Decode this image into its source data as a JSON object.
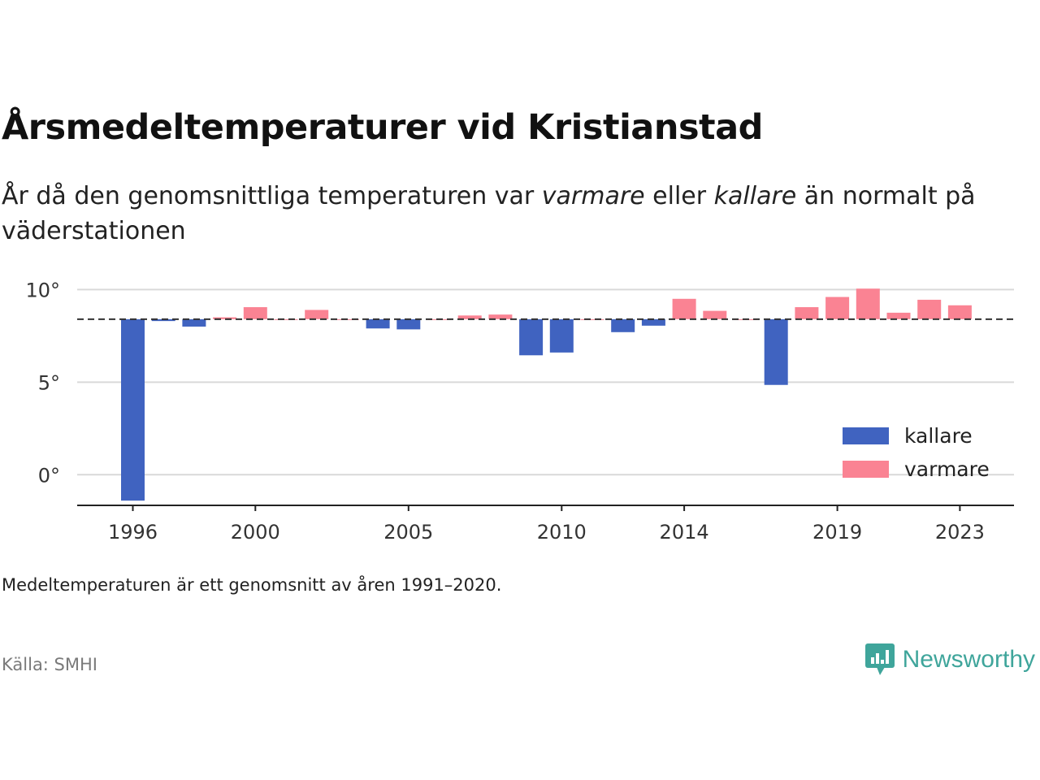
{
  "header": {
    "title": "Årsmedeltemperaturer vid Kristianstad",
    "subtitle_parts": [
      "År då den genomsnittliga temperaturen var ",
      "varmare",
      " eller ",
      "kallare",
      " än normalt på väderstationen"
    ]
  },
  "footer": {
    "note": "Medeltemperaturen är ett genomsnitt av åren 1991–2020.",
    "source": "Källa: SMHI",
    "brand": "Newsworthy",
    "brand_icon": "chart-bubble-logo-icon",
    "brand_color": "#3fa59b"
  },
  "chart_data": {
    "type": "bar",
    "baseline": 8.4,
    "ylim": [
      -1.7,
      10.5
    ],
    "yticks": [
      0,
      5,
      10
    ],
    "ytick_labels": [
      "0°",
      "5°",
      "10°"
    ],
    "xticks": [
      1996,
      2000,
      2005,
      2010,
      2014,
      2019,
      2023
    ],
    "grid": true,
    "legend_position": "bottom-right",
    "colors": {
      "kallare": "#4063c0",
      "varmare": "#fa8393"
    },
    "legend": [
      {
        "key": "kallare",
        "label": "kallare"
      },
      {
        "key": "varmare",
        "label": "varmare"
      }
    ],
    "years": [
      1996,
      1997,
      1998,
      1999,
      2000,
      2001,
      2002,
      2003,
      2004,
      2005,
      2006,
      2007,
      2008,
      2009,
      2010,
      2011,
      2012,
      2013,
      2014,
      2015,
      2016,
      2017,
      2018,
      2019,
      2020,
      2021,
      2022,
      2023
    ],
    "values": [
      -1.4,
      8.3,
      8.0,
      8.5,
      9.05,
      8.4,
      8.9,
      8.4,
      7.9,
      7.85,
      8.4,
      8.6,
      8.65,
      6.45,
      6.6,
      8.4,
      7.7,
      8.05,
      9.5,
      8.85,
      8.4,
      4.85,
      9.05,
      9.6,
      10.05,
      8.75,
      9.45,
      9.15
    ]
  }
}
